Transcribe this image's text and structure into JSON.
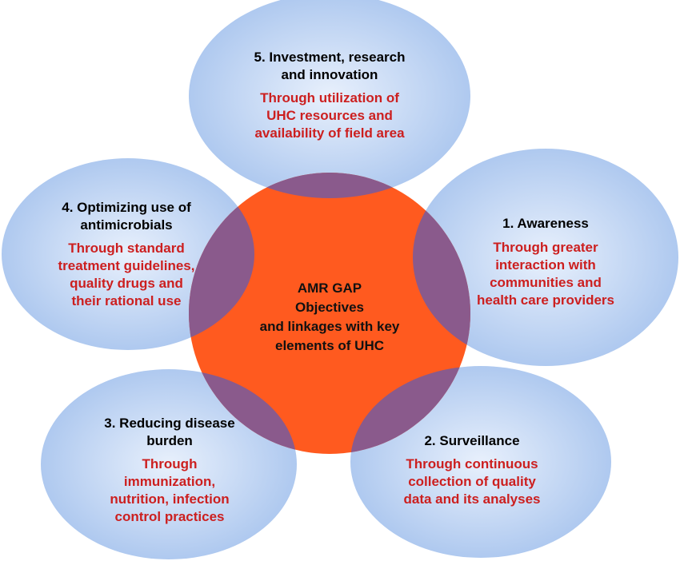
{
  "colors": {
    "ellipse_light": "#dce8fb",
    "ellipse_dark": "#9dbbe9",
    "center_fill": "#ff5a1f",
    "overlap_fill": "#8a5a8c",
    "title_text": "#000000",
    "detail_text": "#cc1f1f"
  },
  "center": {
    "lines": [
      "AMR GAP",
      "Objectives",
      "and linkages with key",
      "elements of UHC"
    ]
  },
  "nodes": {
    "investment": {
      "title": [
        "5. Investment, research",
        "and innovation"
      ],
      "detail": [
        "Through utilization of",
        "UHC resources and",
        "availability of field area"
      ]
    },
    "optimizing": {
      "title": [
        "4. Optimizing use of",
        "antimicrobials"
      ],
      "detail": [
        "Through standard",
        "treatment guidelines,",
        "quality drugs and",
        "their rational use"
      ]
    },
    "awareness": {
      "title": [
        "1. Awareness"
      ],
      "detail": [
        "Through greater",
        "interaction with",
        "communities and",
        "health care providers"
      ]
    },
    "reducing": {
      "title": [
        "3. Reducing disease",
        "burden"
      ],
      "detail": [
        "Through",
        "immunization,",
        "nutrition, infection",
        "control practices"
      ]
    },
    "surveillance": {
      "title": [
        "2. Surveillance"
      ],
      "detail": [
        "Through continuous",
        "collection of quality",
        "data and its analyses"
      ]
    }
  }
}
